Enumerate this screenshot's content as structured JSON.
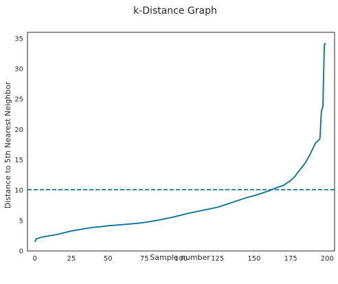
{
  "chart_data": {
    "type": "line",
    "title": "k-Distance Graph",
    "xlabel": "Sample number",
    "ylabel": "Distance to 5th Nearest Neighbor",
    "xlim": [
      -5,
      205
    ],
    "ylim": [
      0,
      36
    ],
    "xticks": [
      0,
      25,
      50,
      75,
      100,
      125,
      150,
      175,
      200
    ],
    "yticks": [
      0,
      5,
      10,
      15,
      20,
      25,
      30,
      35
    ],
    "grid": false,
    "series": [
      {
        "color": "#006e98",
        "x": [
          0,
          1,
          5,
          10,
          15,
          20,
          25,
          30,
          35,
          40,
          45,
          50,
          55,
          60,
          65,
          70,
          75,
          80,
          85,
          90,
          95,
          100,
          105,
          110,
          115,
          120,
          125,
          130,
          135,
          140,
          145,
          150,
          155,
          160,
          165,
          170,
          175,
          178,
          180,
          185,
          188,
          190,
          192,
          194,
          195,
          196,
          197,
          198,
          199
        ],
        "y": [
          1.5,
          2.0,
          2.3,
          2.5,
          2.7,
          3.0,
          3.3,
          3.5,
          3.7,
          3.9,
          4.0,
          4.15,
          4.25,
          4.35,
          4.45,
          4.55,
          4.7,
          4.9,
          5.1,
          5.35,
          5.6,
          5.9,
          6.2,
          6.45,
          6.7,
          6.95,
          7.2,
          7.6,
          8.0,
          8.4,
          8.8,
          9.1,
          9.5,
          9.9,
          10.4,
          10.8,
          11.6,
          12.3,
          13.0,
          14.5,
          15.8,
          16.8,
          17.8,
          18.2,
          18.5,
          23.0,
          23.8,
          34.0,
          34.2
        ]
      }
    ],
    "reference_lines": [
      {
        "orientation": "horizontal",
        "y": 10.1,
        "style": "dashed",
        "color": "#006e98"
      }
    ]
  }
}
